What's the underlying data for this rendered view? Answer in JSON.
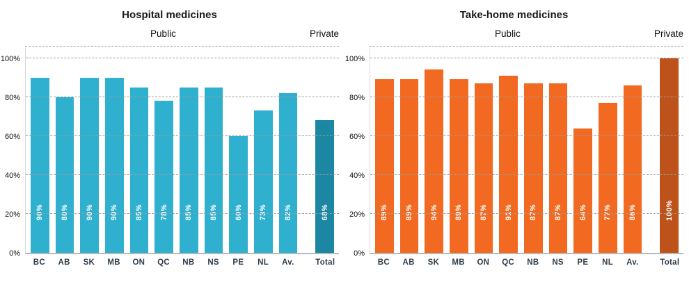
{
  "chart_data": [
    {
      "type": "bar",
      "title": "Hospital medicines",
      "group_labels": {
        "public": "Public",
        "private": "Private"
      },
      "categories": [
        "BC",
        "AB",
        "SK",
        "MB",
        "ON",
        "QC",
        "NB",
        "NS",
        "PE",
        "NL",
        "Av.",
        "Total"
      ],
      "values": [
        90,
        80,
        90,
        90,
        85,
        78,
        85,
        85,
        60,
        73,
        82,
        68
      ],
      "value_labels": [
        "90%",
        "80%",
        "90%",
        "90%",
        "85%",
        "78%",
        "85%",
        "85%",
        "60%",
        "73%",
        "82%",
        "68%"
      ],
      "yticks": [
        0,
        20,
        40,
        60,
        80,
        100
      ],
      "ytick_labels": [
        "0%",
        "20%",
        "40%",
        "60%",
        "80%",
        "100%"
      ],
      "ylim": [
        0,
        107
      ],
      "grid": "dashed-horizontal",
      "legend": "none",
      "colors": {
        "public_bar": "#2FB0CE",
        "total_bar": "#1C87A3",
        "value_label": "#FFFFFF"
      }
    },
    {
      "type": "bar",
      "title": "Take-home medicines",
      "group_labels": {
        "public": "Public",
        "private": "Private"
      },
      "categories": [
        "BC",
        "AB",
        "SK",
        "MB",
        "ON",
        "QC",
        "NB",
        "NS",
        "PE",
        "NL",
        "Av.",
        "Total"
      ],
      "values": [
        89,
        89,
        94,
        89,
        87,
        91,
        87,
        87,
        64,
        77,
        86,
        100
      ],
      "value_labels": [
        "89%",
        "89%",
        "94%",
        "89%",
        "87%",
        "91%",
        "87%",
        "87%",
        "64%",
        "77%",
        "86%",
        "100%"
      ],
      "yticks": [
        0,
        20,
        40,
        60,
        80,
        100
      ],
      "ytick_labels": [
        "0%",
        "20%",
        "40%",
        "60%",
        "80%",
        "100%"
      ],
      "ylim": [
        0,
        107
      ],
      "grid": "dashed-horizontal",
      "legend": "none",
      "colors": {
        "public_bar": "#F26A21",
        "total_bar": "#BD531B",
        "value_label": "#FFFFFF"
      }
    }
  ]
}
